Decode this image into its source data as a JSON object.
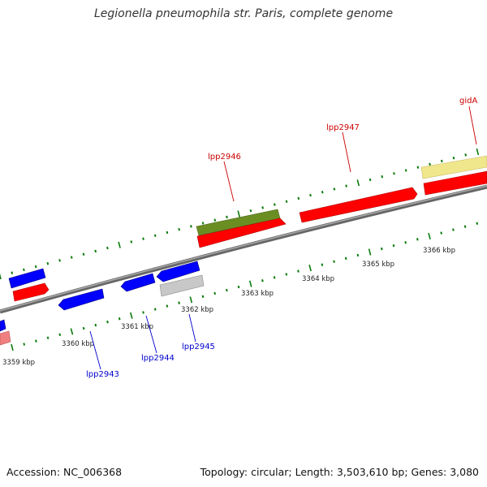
{
  "title": "Legionella pneumophila str. Paris, complete genome",
  "footer": {
    "accession": "Accession: NC_006368",
    "stats": "Topology: circular; Length: 3,503,610 bp; Genes: 3,080"
  },
  "colors": {
    "forward_cds": "#ff0000",
    "reverse_cds": "#0000ff",
    "gene_olive": "#6b8e23",
    "gene_gray": "#bdbdbd",
    "gene_khaki": "#f0e68c",
    "gene_pink": "#f08080",
    "backbone": "#888888",
    "tick": "#0a7a0a",
    "label_red": "#cc0000",
    "label_blue": "#0000cc"
  },
  "scale": {
    "unit": "kbp",
    "tick_labels": [
      "3359 kbp",
      "3360 kbp",
      "3361 kbp",
      "3362 kbp",
      "3363 kbp",
      "3364 kbp",
      "3365 kbp",
      "3366 kbp"
    ]
  },
  "genes": [
    {
      "label": "lpp2943",
      "color_key": "reverse_cds"
    },
    {
      "label": "lpp2944",
      "color_key": "reverse_cds"
    },
    {
      "label": "lpp2945",
      "color_key": "reverse_cds"
    },
    {
      "label": "lpp2946",
      "color_key": "forward_cds"
    },
    {
      "label": "lpp2947",
      "color_key": "forward_cds"
    },
    {
      "label": "gidA",
      "color_key": "forward_cds"
    }
  ]
}
